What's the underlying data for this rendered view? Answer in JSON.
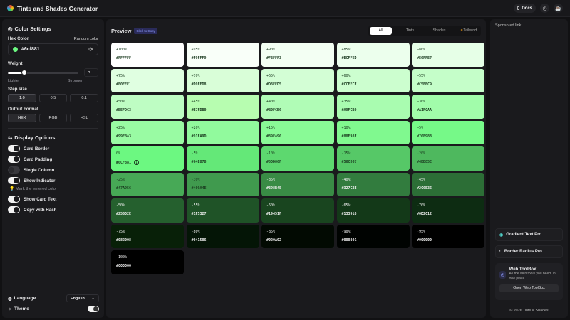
{
  "header": {
    "title": "Tints and Shades Generator",
    "docs_label": "Docs",
    "icons": [
      "github-icon",
      "history-icon",
      "coffee-icon"
    ]
  },
  "settings": {
    "title": "Color Settings",
    "hex_label": "Hex Color",
    "random_label": "Random color",
    "hex_value": "#6cf881",
    "swatch_color": "#6cf881",
    "weight_label": "Weight",
    "weight_value": "5",
    "lighter": "Lighter",
    "stronger": "Stronger",
    "step_label": "Step size",
    "steps": [
      "1.0",
      "0.5",
      "0.1"
    ],
    "step_selected": "1.0",
    "format_label": "Output Format",
    "formats": [
      "HEX",
      "RGB",
      "HSL"
    ],
    "format_selected": "HEX"
  },
  "display": {
    "title": "Display Options",
    "options": [
      {
        "label": "Card Border",
        "on": true
      },
      {
        "label": "Card Padding",
        "on": true
      },
      {
        "label": "Single Column",
        "on": false
      },
      {
        "label": "Show Indicator",
        "on": true
      },
      {
        "label": "Show Card Text",
        "on": true
      },
      {
        "label": "Copy with Hash",
        "on": true
      }
    ],
    "hint": "Mark the entered color"
  },
  "footer_left": {
    "language_label": "Language",
    "language_value": "English",
    "theme_label": "Theme"
  },
  "preview": {
    "title": "Preview",
    "copy_badge": "Click to Copy",
    "tabs": [
      "All",
      "Tints",
      "Shades",
      "Tailwind"
    ],
    "active_tab": "All",
    "cards": [
      {
        "pct": "+100%",
        "hex": "#FFFFFF",
        "bg": "#FFFFFF",
        "dark": true
      },
      {
        "pct": "+95%",
        "hex": "#F9FFF9",
        "bg": "#F9FFF9",
        "dark": true
      },
      {
        "pct": "+90%",
        "hex": "#F3FFF3",
        "bg": "#F3FFF3",
        "dark": true
      },
      {
        "pct": "+85%",
        "hex": "#ECFFED",
        "bg": "#ECFFED",
        "dark": true
      },
      {
        "pct": "+80%",
        "hex": "#E6FFE7",
        "bg": "#E6FFE7",
        "dark": true
      },
      {
        "pct": "+75%",
        "hex": "#E0FFE1",
        "bg": "#E0FFE1",
        "dark": true
      },
      {
        "pct": "+70%",
        "hex": "#D9FED8",
        "bg": "#D9FED8",
        "dark": true
      },
      {
        "pct": "+65%",
        "hex": "#D3FED5",
        "bg": "#D3FED5",
        "dark": true
      },
      {
        "pct": "+60%",
        "hex": "#CCFECF",
        "bg": "#CCFECF",
        "dark": true
      },
      {
        "pct": "+55%",
        "hex": "#C5FEC9",
        "bg": "#C5FEC9",
        "dark": true
      },
      {
        "pct": "+50%",
        "hex": "#BEFDC3",
        "bg": "#BEFDC3",
        "dark": true
      },
      {
        "pct": "+45%",
        "hex": "#B7FDB0",
        "bg": "#B7FDB0",
        "dark": true
      },
      {
        "pct": "+40%",
        "hex": "#B0FCB6",
        "bg": "#B0FCB6",
        "dark": true
      },
      {
        "pct": "+35%",
        "hex": "#A9FCB0",
        "bg": "#A9FCB0",
        "dark": true
      },
      {
        "pct": "+30%",
        "hex": "#A1FCAA",
        "bg": "#A1FCAA",
        "dark": true
      },
      {
        "pct": "+25%",
        "hex": "#99FBA3",
        "bg": "#99FBA3",
        "dark": true
      },
      {
        "pct": "+20%",
        "hex": "#91FA9D",
        "bg": "#91FA9D",
        "dark": true
      },
      {
        "pct": "+15%",
        "hex": "#89FA96",
        "bg": "#89FA96",
        "dark": true
      },
      {
        "pct": "+10%",
        "hex": "#80F98F",
        "bg": "#80F98F",
        "dark": true
      },
      {
        "pct": "+5%",
        "hex": "#76F988",
        "bg": "#76F988",
        "dark": true
      },
      {
        "pct": "0%",
        "hex": "#6CF881",
        "bg": "#6CF881",
        "dark": true,
        "indicator": true
      },
      {
        "pct": "-5%",
        "hex": "#64E878",
        "bg": "#64E878",
        "dark": true
      },
      {
        "pct": "-10%",
        "hex": "#5DD86F",
        "bg": "#5DD86F",
        "dark": true
      },
      {
        "pct": "-15%",
        "hex": "#56C867",
        "bg": "#56C867",
        "dark": true
      },
      {
        "pct": "-20%",
        "hex": "#4EB85E",
        "bg": "#4EB85E",
        "dark": true
      },
      {
        "pct": "-25%",
        "hex": "#47A956",
        "bg": "#47A956",
        "dark": true
      },
      {
        "pct": "-30%",
        "hex": "#409A4E",
        "bg": "#409A4E",
        "dark": true
      },
      {
        "pct": "-35%",
        "hex": "#398B45",
        "bg": "#398B45",
        "dark": false
      },
      {
        "pct": "-40%",
        "hex": "#327C3E",
        "bg": "#327C3E",
        "dark": false
      },
      {
        "pct": "-45%",
        "hex": "#2C6E36",
        "bg": "#2C6E36",
        "dark": false
      },
      {
        "pct": "-50%",
        "hex": "#25602E",
        "bg": "#25602E",
        "dark": false
      },
      {
        "pct": "-55%",
        "hex": "#1F5327",
        "bg": "#1F5327",
        "dark": false
      },
      {
        "pct": "-60%",
        "hex": "#19451F",
        "bg": "#19451F",
        "dark": false
      },
      {
        "pct": "-65%",
        "hex": "#133918",
        "bg": "#133918",
        "dark": false
      },
      {
        "pct": "-70%",
        "hex": "#0D2C12",
        "bg": "#0D2C12",
        "dark": false
      },
      {
        "pct": "-75%",
        "hex": "#082008",
        "bg": "#082008",
        "dark": false
      },
      {
        "pct": "-80%",
        "hex": "#041506",
        "bg": "#041506",
        "dark": false
      },
      {
        "pct": "-85%",
        "hex": "#020A02",
        "bg": "#020A02",
        "dark": false
      },
      {
        "pct": "-90%",
        "hex": "#000301",
        "bg": "#000301",
        "dark": false
      },
      {
        "pct": "-95%",
        "hex": "#000000",
        "bg": "#000000",
        "dark": false
      },
      {
        "pct": "-100%",
        "hex": "#000000",
        "bg": "#000000",
        "dark": false
      }
    ]
  },
  "right": {
    "sponsored": "Sponsored link",
    "links": [
      "Gradient Text Pro",
      "Border Radius Pro"
    ],
    "toolbox": {
      "title": "Web ToolBox",
      "desc": "All the web tools you need, in one place",
      "button": "Open Web ToolBox"
    },
    "copyright": "© 2026 Tints & Shades"
  }
}
